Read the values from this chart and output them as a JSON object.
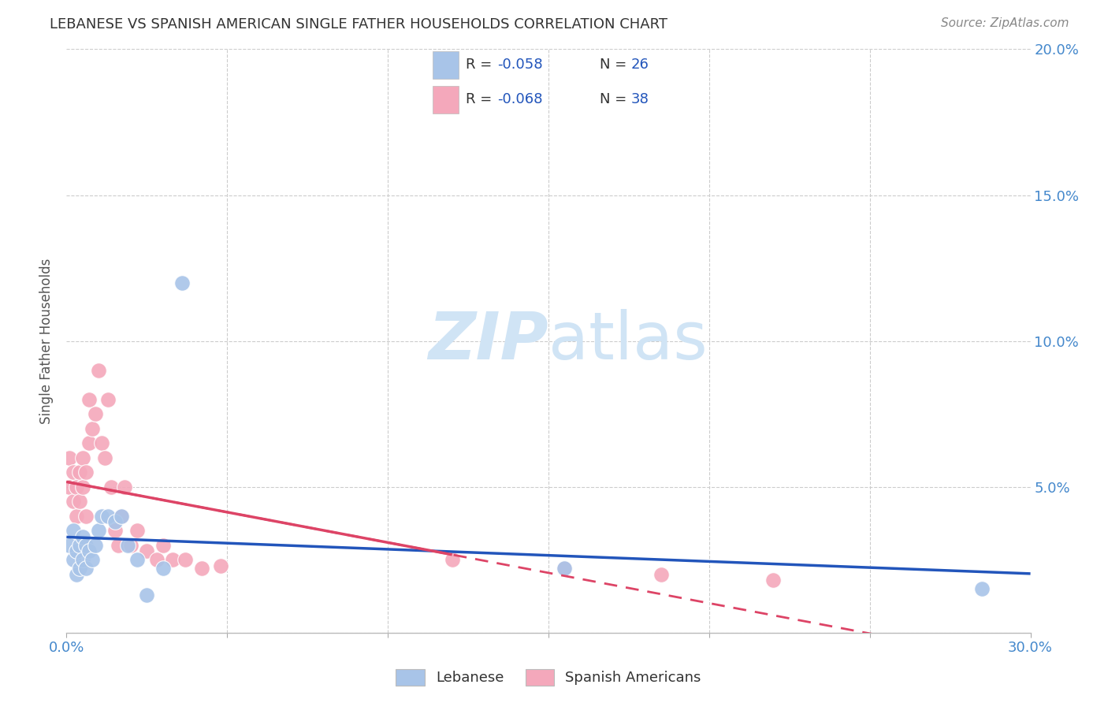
{
  "title": "LEBANESE VS SPANISH AMERICAN SINGLE FATHER HOUSEHOLDS CORRELATION CHART",
  "source": "Source: ZipAtlas.com",
  "ylabel": "Single Father Households",
  "xlim": [
    0.0,
    0.3
  ],
  "ylim": [
    0.0,
    0.2
  ],
  "blue_color": "#a8c4e8",
  "pink_color": "#f4a8bb",
  "blue_line_color": "#2255bb",
  "pink_line_color": "#dd4466",
  "grid_color": "#cccccc",
  "title_color": "#333333",
  "axis_color": "#4488cc",
  "watermark_color": "#d0e4f5",
  "legend_r1": "-0.058",
  "legend_n1": "26",
  "legend_r2": "-0.068",
  "legend_n2": "38",
  "lebanese_x": [
    0.001,
    0.002,
    0.002,
    0.003,
    0.003,
    0.004,
    0.004,
    0.005,
    0.005,
    0.006,
    0.006,
    0.007,
    0.008,
    0.009,
    0.01,
    0.011,
    0.013,
    0.015,
    0.017,
    0.019,
    0.022,
    0.025,
    0.03,
    0.036,
    0.155,
    0.285
  ],
  "lebanese_y": [
    0.03,
    0.025,
    0.035,
    0.028,
    0.02,
    0.03,
    0.022,
    0.033,
    0.025,
    0.03,
    0.022,
    0.028,
    0.025,
    0.03,
    0.035,
    0.04,
    0.04,
    0.038,
    0.04,
    0.03,
    0.025,
    0.013,
    0.022,
    0.12,
    0.022,
    0.015
  ],
  "spanish_x": [
    0.001,
    0.001,
    0.002,
    0.002,
    0.003,
    0.003,
    0.004,
    0.004,
    0.005,
    0.005,
    0.006,
    0.006,
    0.007,
    0.007,
    0.008,
    0.009,
    0.01,
    0.011,
    0.012,
    0.013,
    0.014,
    0.015,
    0.016,
    0.017,
    0.018,
    0.02,
    0.022,
    0.025,
    0.028,
    0.03,
    0.033,
    0.037,
    0.042,
    0.048,
    0.12,
    0.155,
    0.185,
    0.22
  ],
  "spanish_y": [
    0.05,
    0.06,
    0.045,
    0.055,
    0.05,
    0.04,
    0.055,
    0.045,
    0.06,
    0.05,
    0.055,
    0.04,
    0.065,
    0.08,
    0.07,
    0.075,
    0.09,
    0.065,
    0.06,
    0.08,
    0.05,
    0.035,
    0.03,
    0.04,
    0.05,
    0.03,
    0.035,
    0.028,
    0.025,
    0.03,
    0.025,
    0.025,
    0.022,
    0.023,
    0.025,
    0.022,
    0.02,
    0.018
  ]
}
